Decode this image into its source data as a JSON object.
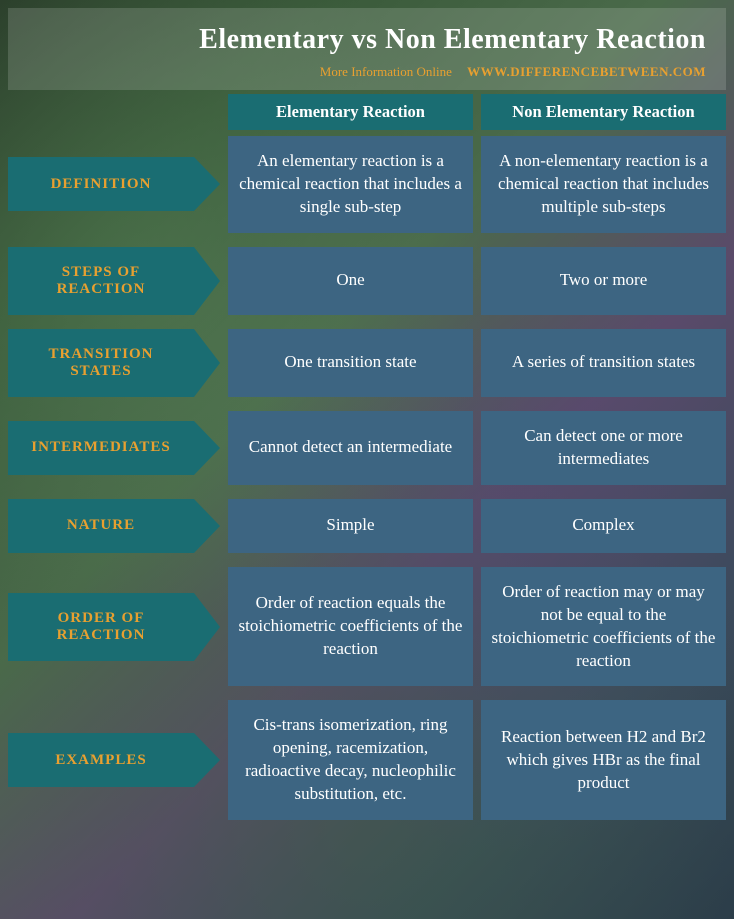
{
  "header": {
    "title": "Elementary vs Non Elementary Reaction",
    "more_info": "More Information Online",
    "url": "WWW.DIFFERENCEBETWEEN.COM"
  },
  "columns": {
    "left": "Elementary Reaction",
    "right": "Non Elementary Reaction"
  },
  "rows": [
    {
      "label": "DEFINITION",
      "left": "An elementary reaction is a chemical reaction that includes a single sub-step",
      "right": "A non-elementary reaction is a chemical reaction that includes multiple sub-steps",
      "tall": false
    },
    {
      "label": "STEPS OF REACTION",
      "left": "One",
      "right": "Two or more",
      "tall": true
    },
    {
      "label": "TRANSITION STATES",
      "left": "One transition state",
      "right": "A series of transition states",
      "tall": true
    },
    {
      "label": "INTERMEDIATES",
      "left": "Cannot detect an intermediate",
      "right": "Can detect one or more intermediates",
      "tall": false
    },
    {
      "label": "NATURE",
      "left": "Simple",
      "right": "Complex",
      "tall": false
    },
    {
      "label": "ORDER OF REACTION",
      "left": "Order of reaction equals the stoichiometric coefficients of the reaction",
      "right": "Order of reaction may or may not be equal to the stoichiometric coefficients of the reaction",
      "tall": true
    },
    {
      "label": "EXAMPLES",
      "left": "Cis-trans isomerization, ring opening, racemization, radioactive decay, nucleophilic substitution, etc.",
      "right": "Reaction between H2 and Br2 which gives HBr as the final product",
      "tall": false
    }
  ],
  "colors": {
    "teal": "#1a6d72",
    "cell": "#3d6582",
    "accent": "#e8a030",
    "text": "#ffffff"
  }
}
